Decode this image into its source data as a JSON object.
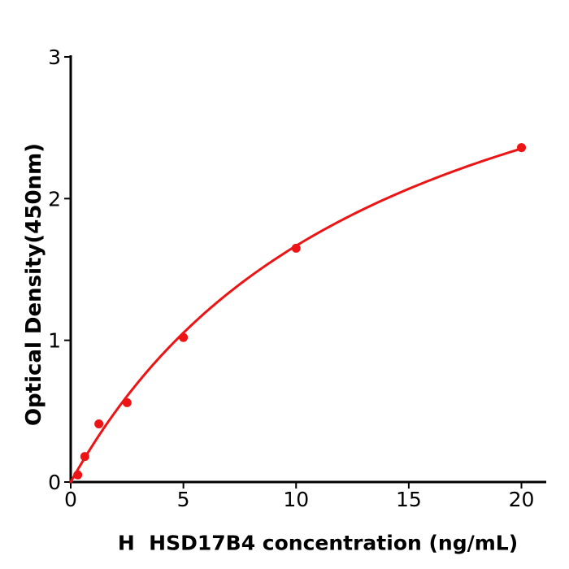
{
  "chart_data": {
    "type": "scatter",
    "title": "",
    "xlabel": "H  HSD17B4 concentration (ng/mL)",
    "ylabel": "Optical Density(450nm)",
    "xlim": [
      0,
      21.1
    ],
    "ylim": [
      0,
      3
    ],
    "x_ticks": [
      0,
      5,
      10,
      15,
      20
    ],
    "y_ticks": [
      0,
      1,
      2,
      3
    ],
    "grid": false,
    "legend": "none",
    "points": [
      {
        "x": 0.3125,
        "y": 0.05
      },
      {
        "x": 0.625,
        "y": 0.18
      },
      {
        "x": 1.25,
        "y": 0.41
      },
      {
        "x": 2.5,
        "y": 0.56
      },
      {
        "x": 5,
        "y": 1.02
      },
      {
        "x": 10,
        "y": 1.65
      },
      {
        "x": 20,
        "y": 2.36
      }
    ],
    "fit_curve": {
      "model": "michaelis-menten",
      "vmax": 4.0,
      "km": 14.0,
      "x_start": 0,
      "x_end": 20
    },
    "colors": {
      "series": "#ec1414",
      "axis": "#000000",
      "background": "#ffffff"
    },
    "marker_radius": 5.5,
    "curve_width": 3
  }
}
